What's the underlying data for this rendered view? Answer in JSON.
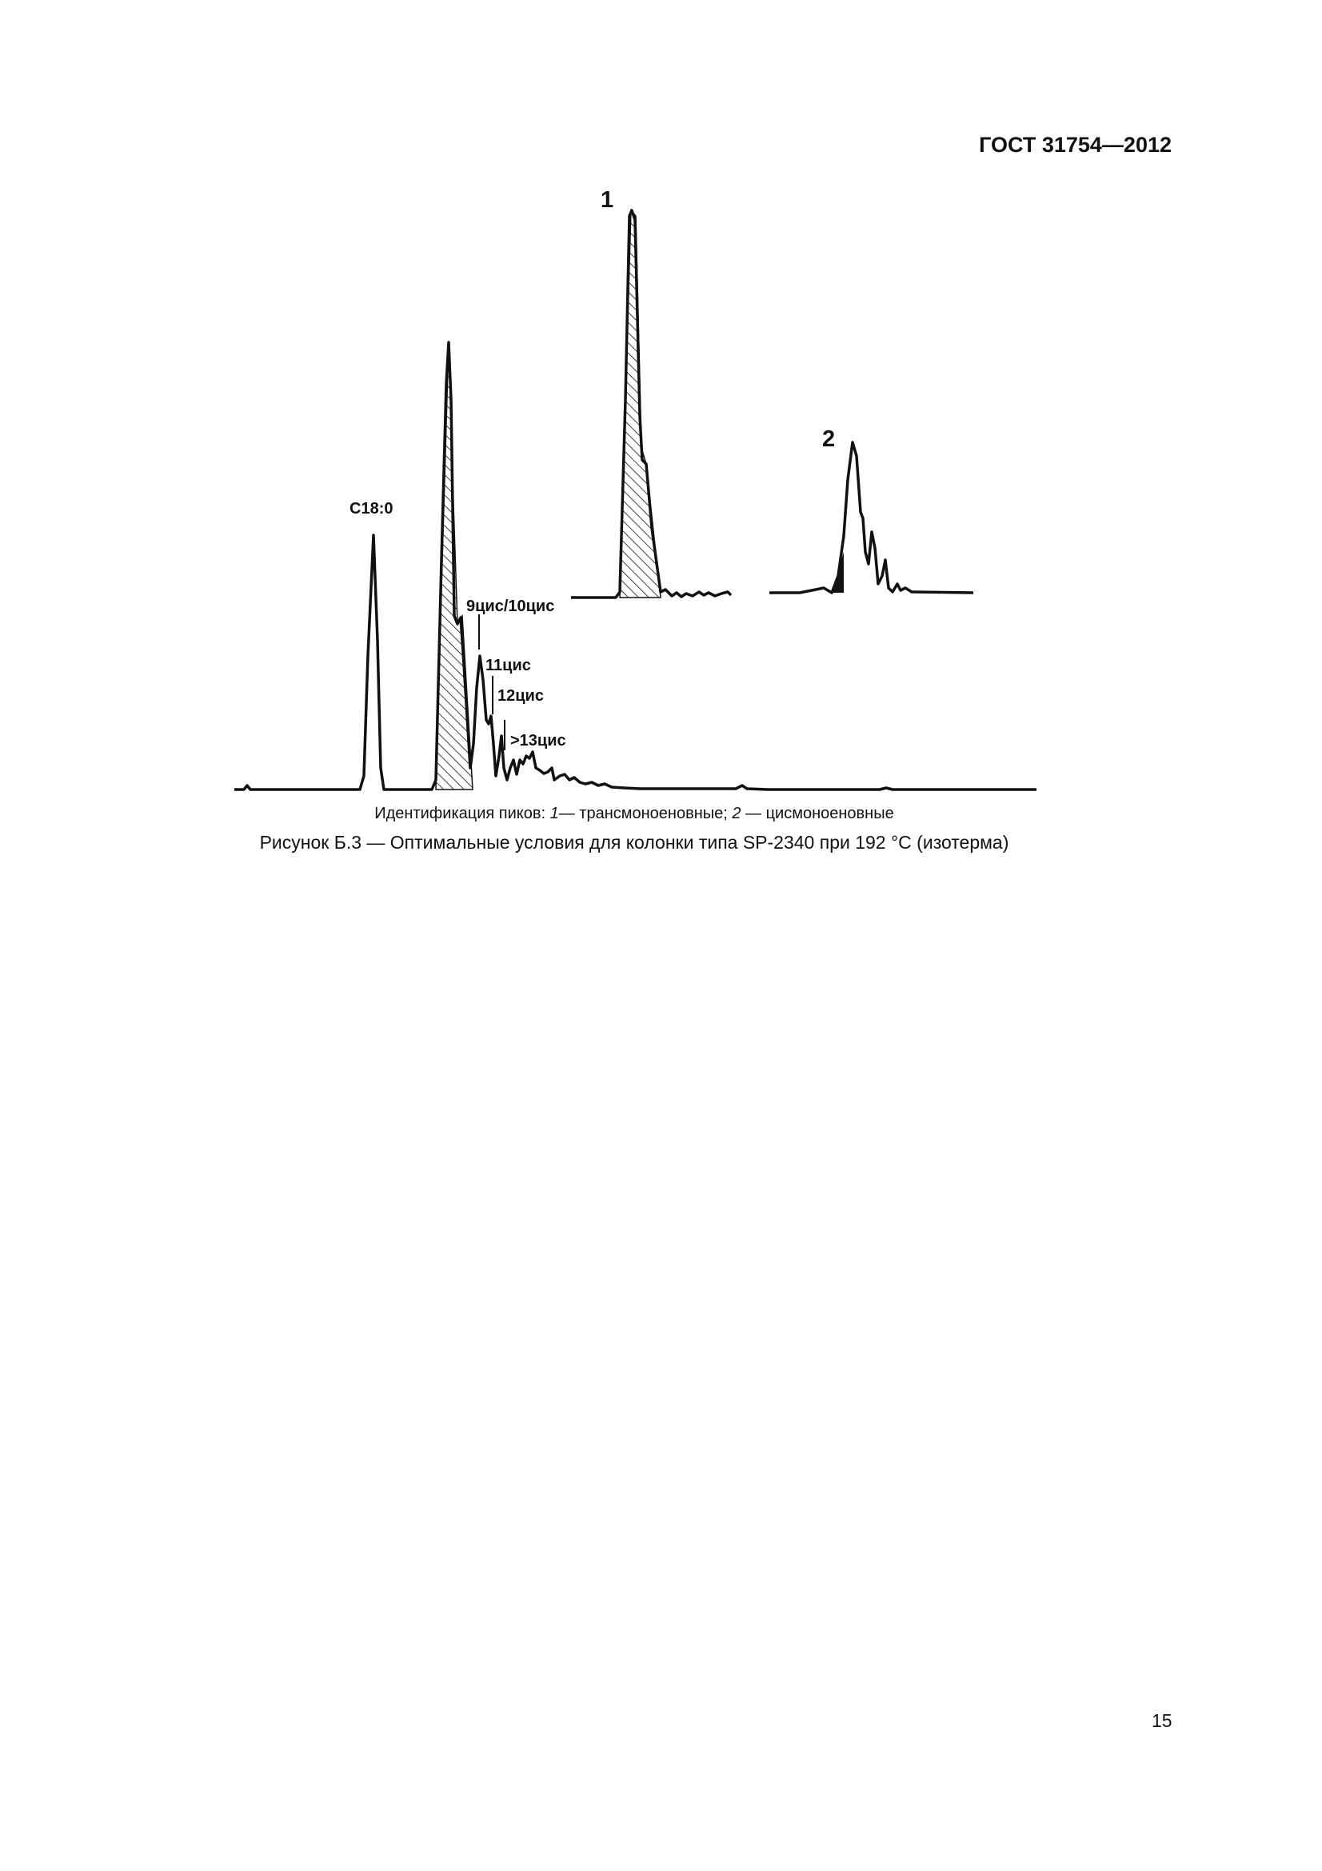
{
  "header": {
    "standard": "ГОСТ 31754—2012"
  },
  "figure": {
    "peak_labels": {
      "c18": "С18:0",
      "cis9_10": "9цис/10цис",
      "cis11": "11цис",
      "cis12": "12цис",
      "cis13": ">13цис",
      "inset1": "1",
      "inset2": "2"
    },
    "legend_prefix": "Идентификация пиков: ",
    "legend_1_num": "1",
    "legend_1_text": "— трансмоноеновные; ",
    "legend_2_num": "2",
    "legend_2_text": " — цисмоноеновные",
    "caption": "Рисунок Б.3 — Оптимальные условия для колонки типа SP-2340 при 192 °С (изотерма)"
  },
  "footer": {
    "page_number": "15"
  }
}
